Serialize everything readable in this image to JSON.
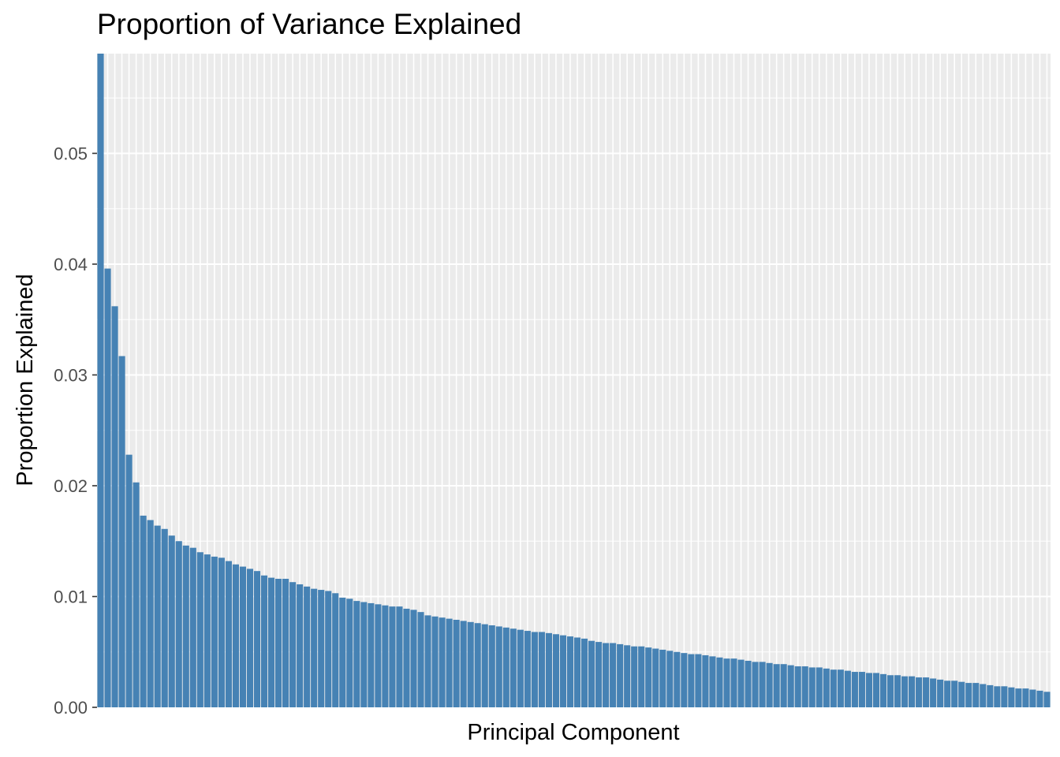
{
  "chart_data": {
    "type": "bar",
    "title": "Proportion of Variance Explained",
    "xlabel": "Principal Component",
    "ylabel": "Proportion Explained",
    "ylim": [
      0,
      0.059
    ],
    "yticks": [
      0.0,
      0.01,
      0.02,
      0.03,
      0.04,
      0.05
    ],
    "ytick_labels": [
      "0.00",
      "0.01",
      "0.02",
      "0.03",
      "0.04",
      "0.05"
    ],
    "x_tick_labels_shown": false,
    "grid": true,
    "bar_color": "#4682B4",
    "panel_background": "#EBEBEB",
    "gridline_color": "#FFFFFF",
    "tick_color": "#333333",
    "values": [
      0.059,
      0.0396,
      0.0362,
      0.0317,
      0.0228,
      0.0203,
      0.0173,
      0.0169,
      0.0164,
      0.0161,
      0.0155,
      0.015,
      0.0146,
      0.0144,
      0.014,
      0.0138,
      0.0136,
      0.0135,
      0.0132,
      0.0129,
      0.0127,
      0.0125,
      0.0123,
      0.0119,
      0.0117,
      0.0116,
      0.0116,
      0.0113,
      0.0111,
      0.0109,
      0.0107,
      0.0106,
      0.0105,
      0.0103,
      0.0099,
      0.0098,
      0.0096,
      0.0095,
      0.0094,
      0.0093,
      0.0092,
      0.0091,
      0.0091,
      0.0089,
      0.0088,
      0.0086,
      0.0083,
      0.0082,
      0.0081,
      0.008,
      0.0079,
      0.0078,
      0.0077,
      0.0076,
      0.0075,
      0.0074,
      0.0073,
      0.0072,
      0.0071,
      0.007,
      0.0069,
      0.0068,
      0.0068,
      0.0067,
      0.0066,
      0.0065,
      0.0064,
      0.0063,
      0.0062,
      0.006,
      0.0059,
      0.0058,
      0.0058,
      0.0057,
      0.0056,
      0.0055,
      0.0055,
      0.0054,
      0.0053,
      0.0052,
      0.0051,
      0.005,
      0.0049,
      0.0048,
      0.0048,
      0.0047,
      0.0046,
      0.0045,
      0.0044,
      0.0044,
      0.0043,
      0.0042,
      0.0041,
      0.0041,
      0.004,
      0.0039,
      0.0039,
      0.0038,
      0.0037,
      0.0037,
      0.0036,
      0.0036,
      0.0035,
      0.0034,
      0.0034,
      0.0033,
      0.0032,
      0.0032,
      0.0031,
      0.0031,
      0.003,
      0.0029,
      0.0029,
      0.0028,
      0.0028,
      0.0027,
      0.0027,
      0.0026,
      0.0025,
      0.0024,
      0.0024,
      0.0023,
      0.0022,
      0.0022,
      0.0021,
      0.002,
      0.0019,
      0.0019,
      0.0018,
      0.0017,
      0.0017,
      0.0016,
      0.0015,
      0.0014
    ]
  }
}
